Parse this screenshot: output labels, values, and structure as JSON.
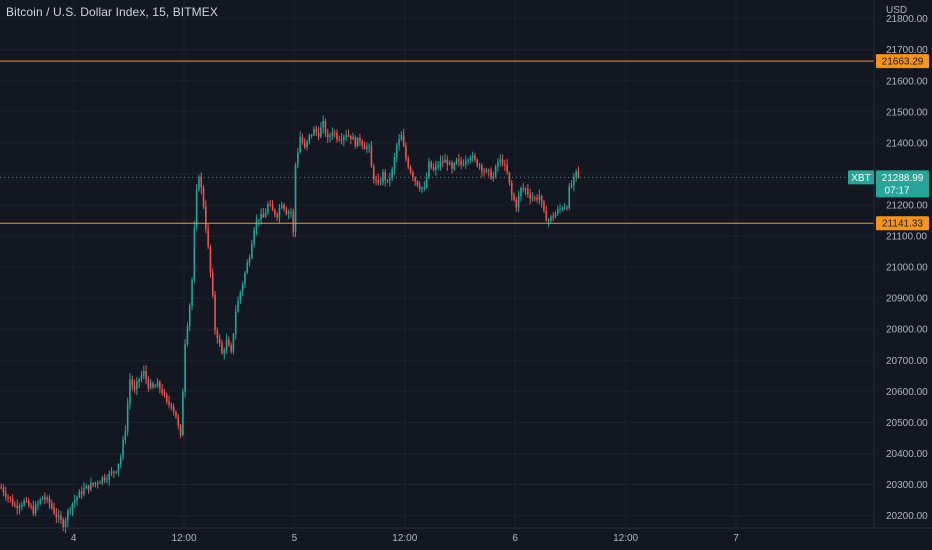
{
  "header": {
    "title": "Bitcoin / U.S. Dollar Index, 15, BITMEX",
    "currency": "USD"
  },
  "colors": {
    "background": "#131722",
    "up": "#26a69a",
    "down": "#ef5350",
    "level_line": "#f7931a",
    "price_badge": "#26a69a",
    "grid": "#1e222d"
  },
  "chart_data": {
    "type": "candlestick",
    "ylim": [
      20160,
      21860
    ],
    "yticks": [
      20200,
      20300,
      20400,
      20500,
      20600,
      20700,
      20800,
      20900,
      21000,
      21100,
      21200,
      21300,
      21400,
      21500,
      21600,
      21700,
      21800
    ],
    "ytick_labels": [
      "20200.00",
      "20300.00",
      "20400.00",
      "20500.00",
      "20600.00",
      "20700.00",
      "20800.00",
      "20900.00",
      "21000.00",
      "21100.00",
      "21200.00",
      "21300.00",
      "21400.00",
      "21500.00",
      "21600.00",
      "21700.00",
      "21800.00"
    ],
    "x_unit_label": "15-minute bars",
    "xlim": [
      0,
      380
    ],
    "xticks": [
      {
        "bar": 32,
        "label": "4"
      },
      {
        "bar": 80,
        "label": "12:00"
      },
      {
        "bar": 128,
        "label": "5"
      },
      {
        "bar": 176,
        "label": "12:00"
      },
      {
        "bar": 224,
        "label": "6"
      },
      {
        "bar": 272,
        "label": "12:00"
      },
      {
        "bar": 320,
        "label": "7"
      }
    ],
    "path": [
      [
        0,
        20290
      ],
      [
        3,
        20260
      ],
      [
        6,
        20230
      ],
      [
        10,
        20245
      ],
      [
        14,
        20215
      ],
      [
        18,
        20260
      ],
      [
        21,
        20240
      ],
      [
        24,
        20200
      ],
      [
        27,
        20170
      ],
      [
        30,
        20230
      ],
      [
        33,
        20260
      ],
      [
        36,
        20285
      ],
      [
        40,
        20300
      ],
      [
        44,
        20320
      ],
      [
        47,
        20330
      ],
      [
        50,
        20350
      ],
      [
        52,
        20390
      ],
      [
        54,
        20480
      ],
      [
        55,
        20560
      ],
      [
        56,
        20640
      ],
      [
        58,
        20600
      ],
      [
        60,
        20640
      ],
      [
        62,
        20660
      ],
      [
        64,
        20620
      ],
      [
        66,
        20610
      ],
      [
        68,
        20620
      ],
      [
        70,
        20600
      ],
      [
        72,
        20560
      ],
      [
        74,
        20560
      ],
      [
        76,
        20520
      ],
      [
        78,
        20450
      ],
      [
        80,
        20760
      ],
      [
        82,
        20880
      ],
      [
        83,
        20960
      ],
      [
        84,
        21120
      ],
      [
        85,
        21240
      ],
      [
        86,
        21300
      ],
      [
        88,
        21200
      ],
      [
        90,
        21060
      ],
      [
        92,
        20900
      ],
      [
        93,
        20800
      ],
      [
        94,
        20780
      ],
      [
        96,
        20720
      ],
      [
        98,
        20760
      ],
      [
        100,
        20720
      ],
      [
        102,
        20860
      ],
      [
        104,
        20920
      ],
      [
        106,
        20980
      ],
      [
        108,
        21040
      ],
      [
        110,
        21130
      ],
      [
        112,
        21160
      ],
      [
        114,
        21160
      ],
      [
        116,
        21200
      ],
      [
        118,
        21180
      ],
      [
        120,
        21170
      ],
      [
        122,
        21210
      ],
      [
        124,
        21180
      ],
      [
        126,
        21180
      ],
      [
        127,
        21110
      ],
      [
        128,
        21330
      ],
      [
        130,
        21420
      ],
      [
        132,
        21380
      ],
      [
        134,
        21420
      ],
      [
        136,
        21440
      ],
      [
        138,
        21430
      ],
      [
        140,
        21460
      ],
      [
        142,
        21410
      ],
      [
        144,
        21440
      ],
      [
        146,
        21420
      ],
      [
        148,
        21420
      ],
      [
        150,
        21430
      ],
      [
        152,
        21420
      ],
      [
        154,
        21400
      ],
      [
        156,
        21410
      ],
      [
        158,
        21390
      ],
      [
        160,
        21380
      ],
      [
        161,
        21320
      ],
      [
        162,
        21290
      ],
      [
        164,
        21260
      ],
      [
        166,
        21300
      ],
      [
        168,
        21270
      ],
      [
        170,
        21310
      ],
      [
        172,
        21390
      ],
      [
        174,
        21420
      ],
      [
        176,
        21350
      ],
      [
        178,
        21310
      ],
      [
        180,
        21280
      ],
      [
        182,
        21260
      ],
      [
        184,
        21250
      ],
      [
        186,
        21330
      ],
      [
        188,
        21310
      ],
      [
        190,
        21330
      ],
      [
        192,
        21340
      ],
      [
        194,
        21340
      ],
      [
        196,
        21310
      ],
      [
        198,
        21340
      ],
      [
        200,
        21330
      ],
      [
        202,
        21350
      ],
      [
        204,
        21360
      ],
      [
        206,
        21340
      ],
      [
        208,
        21330
      ],
      [
        210,
        21310
      ],
      [
        212,
        21300
      ],
      [
        214,
        21290
      ],
      [
        216,
        21340
      ],
      [
        218,
        21340
      ],
      [
        220,
        21300
      ],
      [
        222,
        21230
      ],
      [
        224,
        21200
      ],
      [
        226,
        21250
      ],
      [
        228,
        21250
      ],
      [
        230,
        21230
      ],
      [
        232,
        21220
      ],
      [
        234,
        21230
      ],
      [
        236,
        21170
      ],
      [
        238,
        21150
      ],
      [
        240,
        21165
      ],
      [
        242,
        21180
      ],
      [
        244,
        21195
      ],
      [
        246,
        21200
      ],
      [
        247,
        21250
      ],
      [
        249,
        21280
      ],
      [
        250,
        21300
      ],
      [
        251,
        21289
      ]
    ],
    "levels": [
      {
        "value": 21663.29,
        "label": "21663.29"
      },
      {
        "value": 21141.33,
        "label": "21141.33"
      }
    ],
    "current_price": {
      "value": 21288.99,
      "symbol": "XBT",
      "label": "21288.99",
      "countdown": "07:17"
    }
  }
}
